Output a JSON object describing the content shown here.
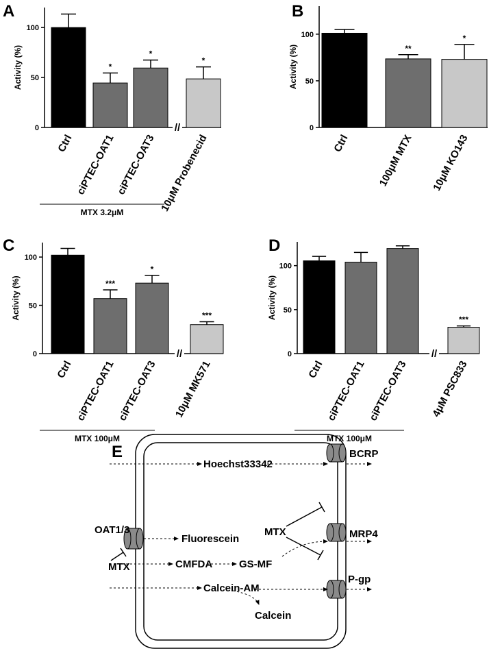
{
  "chart_data": [
    {
      "type": "bar",
      "panel": "A",
      "y_label": "Activity (%)",
      "categories": [
        "Ctrl",
        "ciPTEC-OAT1",
        "ciPTEC-OAT3",
        "10μM Probenecid"
      ],
      "values": [
        100,
        44.5,
        59.5,
        48.6
      ],
      "errors": [
        13.5,
        10,
        8,
        12
      ],
      "annotations": [
        null,
        "*",
        "*",
        "*"
      ],
      "colors": [
        "#000000",
        "#6e6e6e",
        "#6e6e6e",
        "#c8c8c8"
      ],
      "ylim": [
        0,
        120
      ],
      "yticks": [
        0,
        50,
        100
      ],
      "break_label": "//",
      "group": {
        "label": "MTX 3.2μM",
        "categories": 3
      }
    },
    {
      "type": "bar",
      "panel": "B",
      "y_label": "Activity (%)",
      "categories": [
        "Ctrl",
        "100μM MTX",
        "10μM KO143"
      ],
      "values": [
        101,
        73.5,
        73
      ],
      "errors": [
        4,
        4.5,
        16
      ],
      "annotations": [
        null,
        "**",
        "*"
      ],
      "colors": [
        "#000000",
        "#6e6e6e",
        "#c8c8c8"
      ],
      "ylim": [
        0,
        130
      ],
      "yticks": [
        0,
        50,
        100
      ]
    },
    {
      "type": "bar",
      "panel": "C",
      "y_label": "Activity (%)",
      "categories": [
        "Ctrl",
        "ciPTEC-OAT1",
        "ciPTEC-OAT3",
        "10μM MK571"
      ],
      "values": [
        102,
        57,
        73,
        30
      ],
      "errors": [
        7,
        9,
        8,
        3
      ],
      "annotations": [
        null,
        "***",
        "*",
        "***"
      ],
      "colors": [
        "#000000",
        "#6e6e6e",
        "#6e6e6e",
        "#c8c8c8"
      ],
      "ylim": [
        0,
        115
      ],
      "yticks": [
        0,
        50,
        100
      ],
      "break_label": "//",
      "group": {
        "label": "MTX 100μM",
        "categories": 3
      }
    },
    {
      "type": "bar",
      "panel": "D",
      "y_label": "Activity (%)",
      "categories": [
        "Ctrl",
        "ciPTEC-OAT1",
        "ciPTEC-OAT3",
        "4μM PSC833"
      ],
      "values": [
        105.5,
        104,
        119.5,
        30
      ],
      "errors": [
        5,
        11,
        3,
        1.5
      ],
      "annotations": [
        null,
        null,
        null,
        "***"
      ],
      "colors": [
        "#000000",
        "#6e6e6e",
        "#6e6e6e",
        "#c8c8c8"
      ],
      "ylim": [
        0,
        127
      ],
      "yticks": [
        0,
        50,
        100
      ],
      "break_label": "//",
      "group": {
        "label": "MTX 100μM",
        "categories": 3
      }
    }
  ],
  "diagram": {
    "panel": "E",
    "transporters": [
      "BCRP",
      "MRP4",
      "P-gp",
      "OAT1/3"
    ],
    "labels": [
      "Hoechst33342",
      "Fluorescein",
      "MTX",
      "MTX",
      "CMFDA",
      "GS-MF",
      "Calcein-AM",
      "Calcein"
    ]
  }
}
